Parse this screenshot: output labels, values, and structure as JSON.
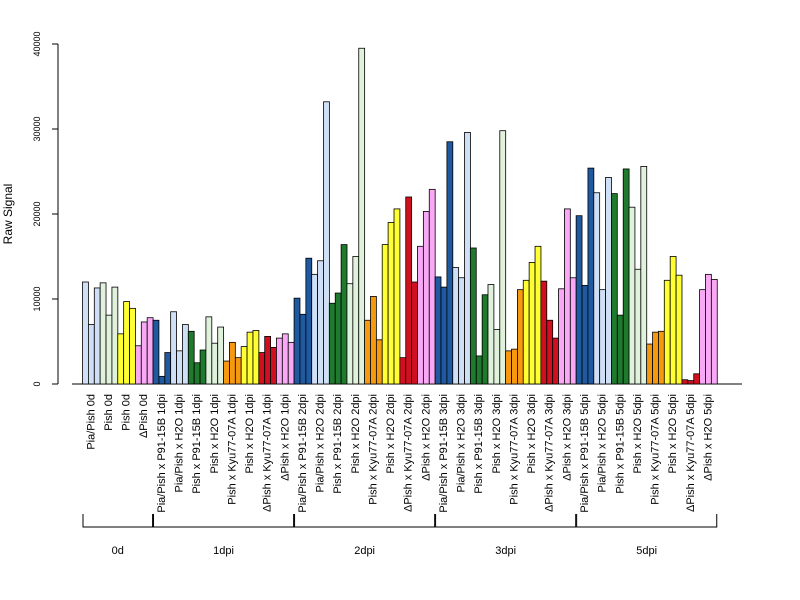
{
  "chart_data": {
    "type": "bar",
    "title": "",
    "xlabel": "",
    "ylabel": "Raw Signal",
    "ylim": [
      0,
      40000
    ],
    "yticks": [
      "0",
      "10000",
      "20000",
      "30000",
      "40000"
    ],
    "grid": false,
    "legend": "none",
    "groups": [
      {
        "label": "Pia/Pish 0d",
        "fill": "#cfe0f6",
        "values": [
          12000,
          7000,
          11300
        ]
      },
      {
        "label": "Pish 0d",
        "fill": "#e0f2dc",
        "values": [
          11900,
          8100,
          11400
        ]
      },
      {
        "label": "Pish 0d",
        "fill": "#ffff33",
        "values": [
          5900,
          9700,
          8900
        ]
      },
      {
        "label": "ΔPish 0d",
        "fill": "#f8a8f4",
        "values": [
          4500,
          7300,
          7800
        ]
      },
      {
        "label": "Pia/Pish x P91-15B 1dpi",
        "fill": "#1f5aa0",
        "values": [
          7500,
          900,
          3700
        ]
      },
      {
        "label": "Pia/Pish x H2O 1dpi",
        "fill": "#cfe0f6",
        "values": [
          8500,
          3900,
          7000
        ]
      },
      {
        "label": "Pish x P91-15B 1dpi",
        "fill": "#1f7a2e",
        "values": [
          6200,
          2500,
          4000
        ]
      },
      {
        "label": "Pish x H2O 1dpi",
        "fill": "#e0f2dc",
        "values": [
          7900,
          4800,
          6700
        ]
      },
      {
        "label": "Pish x Kyu77-07A 1dpi",
        "fill": "#f59a10",
        "values": [
          2700,
          4900,
          3100
        ]
      },
      {
        "label": "Pish x H2O 1dpi",
        "fill": "#ffff33",
        "values": [
          4400,
          6100,
          6300
        ]
      },
      {
        "label": "ΔPish x Kyu77-07A 1dpi",
        "fill": "#d01020",
        "values": [
          3700,
          5600,
          4300
        ]
      },
      {
        "label": "ΔPish x H2O 1dpi",
        "fill": "#f8a8f4",
        "values": [
          5400,
          5900,
          4900
        ]
      },
      {
        "label": "Pia/Pish x P91-15B 2dpi",
        "fill": "#1f5aa0",
        "values": [
          10100,
          8200,
          14800
        ]
      },
      {
        "label": "Pia/Pish x H2O 2dpi",
        "fill": "#cfe0f6",
        "values": [
          12900,
          14500,
          33200
        ]
      },
      {
        "label": "Pish x P91-15B 2dpi",
        "fill": "#1f7a2e",
        "values": [
          9500,
          10700,
          16400
        ]
      },
      {
        "label": "Pish x H2O 2dpi",
        "fill": "#e0f2dc",
        "values": [
          11800,
          15000,
          39500
        ]
      },
      {
        "label": "Pish x Kyu77-07A 2dpi",
        "fill": "#f59a10",
        "values": [
          7500,
          10300,
          5200
        ]
      },
      {
        "label": "Pish x H2O 2dpi",
        "fill": "#ffff33",
        "values": [
          16400,
          19000,
          20600
        ]
      },
      {
        "label": "ΔPish x Kyu77-07A 2dpi",
        "fill": "#d01020",
        "values": [
          3100,
          22000,
          12000
        ]
      },
      {
        "label": "ΔPish x H2O 2dpi",
        "fill": "#f8a8f4",
        "values": [
          16200,
          20300,
          22900
        ]
      },
      {
        "label": "Pia/Pish x P91-15B 3dpi",
        "fill": "#1f5aa0",
        "values": [
          12600,
          11400,
          28500
        ]
      },
      {
        "label": "Pia/Pish x H2O 3dpi",
        "fill": "#cfe0f6",
        "values": [
          13700,
          12500,
          29600
        ]
      },
      {
        "label": "Pish x P91-15B 3dpi",
        "fill": "#1f7a2e",
        "values": [
          16000,
          3300,
          10500
        ]
      },
      {
        "label": "Pish x H2O 3dpi",
        "fill": "#e0f2dc",
        "values": [
          11700,
          6400,
          29800
        ]
      },
      {
        "label": "Pish x Kyu77-07A 3dpi",
        "fill": "#f59a10",
        "values": [
          3900,
          4100,
          11100
        ]
      },
      {
        "label": "Pish x H2O 3dpi",
        "fill": "#ffff33",
        "values": [
          12200,
          14300,
          16200
        ]
      },
      {
        "label": "ΔPish x Kyu77-07A 3dpi",
        "fill": "#d01020",
        "values": [
          12100,
          7500,
          5400
        ]
      },
      {
        "label": "ΔPish x H2O 3dpi",
        "fill": "#f8a8f4",
        "values": [
          11200,
          20600,
          12500
        ]
      },
      {
        "label": "Pia/Pish x P91-15B 5dpi",
        "fill": "#1f5aa0",
        "values": [
          19800,
          11600,
          25400
        ]
      },
      {
        "label": "Pia/Pish x H2O 5dpi",
        "fill": "#cfe0f6",
        "values": [
          22500,
          11100,
          24300
        ]
      },
      {
        "label": "Pish x P91-15B 5dpi",
        "fill": "#1f7a2e",
        "values": [
          22400,
          8100,
          25300
        ]
      },
      {
        "label": "Pish x H2O 5dpi",
        "fill": "#e0f2dc",
        "values": [
          20800,
          13500,
          25600
        ]
      },
      {
        "label": "Pish x Kyu77-07A 5dpi",
        "fill": "#f59a10",
        "values": [
          4700,
          6100,
          6200
        ]
      },
      {
        "label": "Pish x H2O 5dpi",
        "fill": "#ffff33",
        "values": [
          12200,
          15000,
          12800
        ]
      },
      {
        "label": "ΔPish x Kyu77-07A 5dpi",
        "fill": "#d01020",
        "values": [
          500,
          400,
          1200
        ]
      },
      {
        "label": "ΔPish x H2O 5dpi",
        "fill": "#f8a8f4",
        "values": [
          11100,
          12900,
          12300
        ]
      }
    ],
    "timepoints": [
      {
        "label": "0d",
        "from": 0,
        "to": 3
      },
      {
        "label": "1dpi",
        "from": 4,
        "to": 11
      },
      {
        "label": "2dpi",
        "from": 12,
        "to": 19
      },
      {
        "label": "3dpi",
        "from": 20,
        "to": 27
      },
      {
        "label": "5dpi",
        "from": 28,
        "to": 35
      }
    ]
  }
}
